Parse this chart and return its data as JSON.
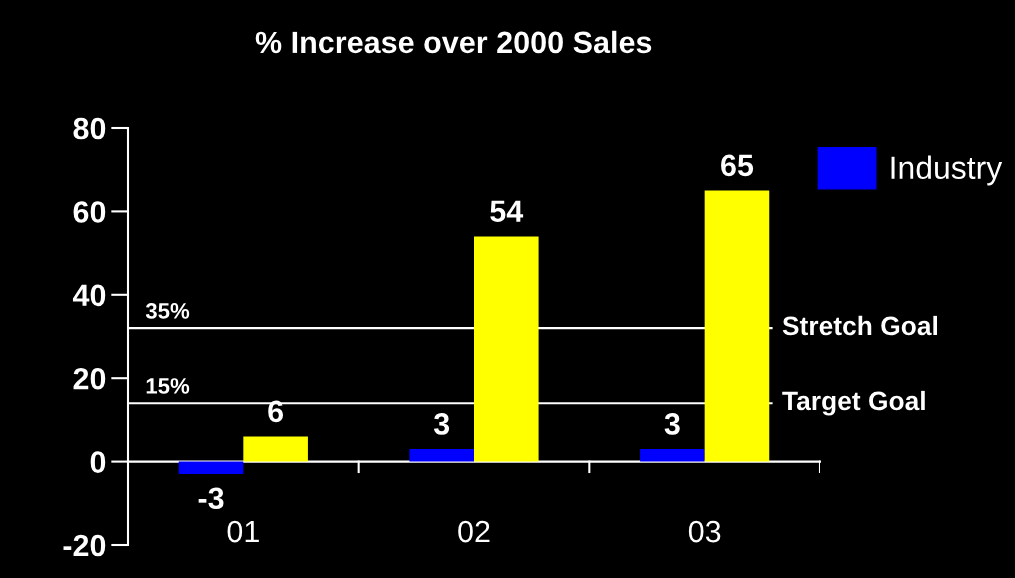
{
  "chart_data": {
    "type": "bar",
    "title": "% Increase over 2000 Sales",
    "categories": [
      "01",
      "02",
      "03"
    ],
    "series": [
      {
        "name": "Industry",
        "color": "#0000ff",
        "values": [
          -3,
          3,
          3
        ]
      },
      {
        "color": "#ffff00",
        "values": [
          6,
          54,
          65
        ]
      }
    ],
    "ylim": [
      -20,
      80
    ],
    "yticks": [
      -20,
      0,
      20,
      40,
      60,
      80
    ],
    "data_labels": true,
    "legend": "top right",
    "ref_lines": [
      {
        "axis": "y",
        "value": 32,
        "label": "Stretch Goal",
        "color": "#ffffff"
      },
      {
        "axis": "y",
        "value": 14,
        "label": "Target Goal",
        "color": "#ffffff"
      }
    ],
    "annotations": [
      {
        "text": "35%",
        "y": 32
      },
      {
        "text": "15%",
        "y": 14
      }
    ]
  }
}
